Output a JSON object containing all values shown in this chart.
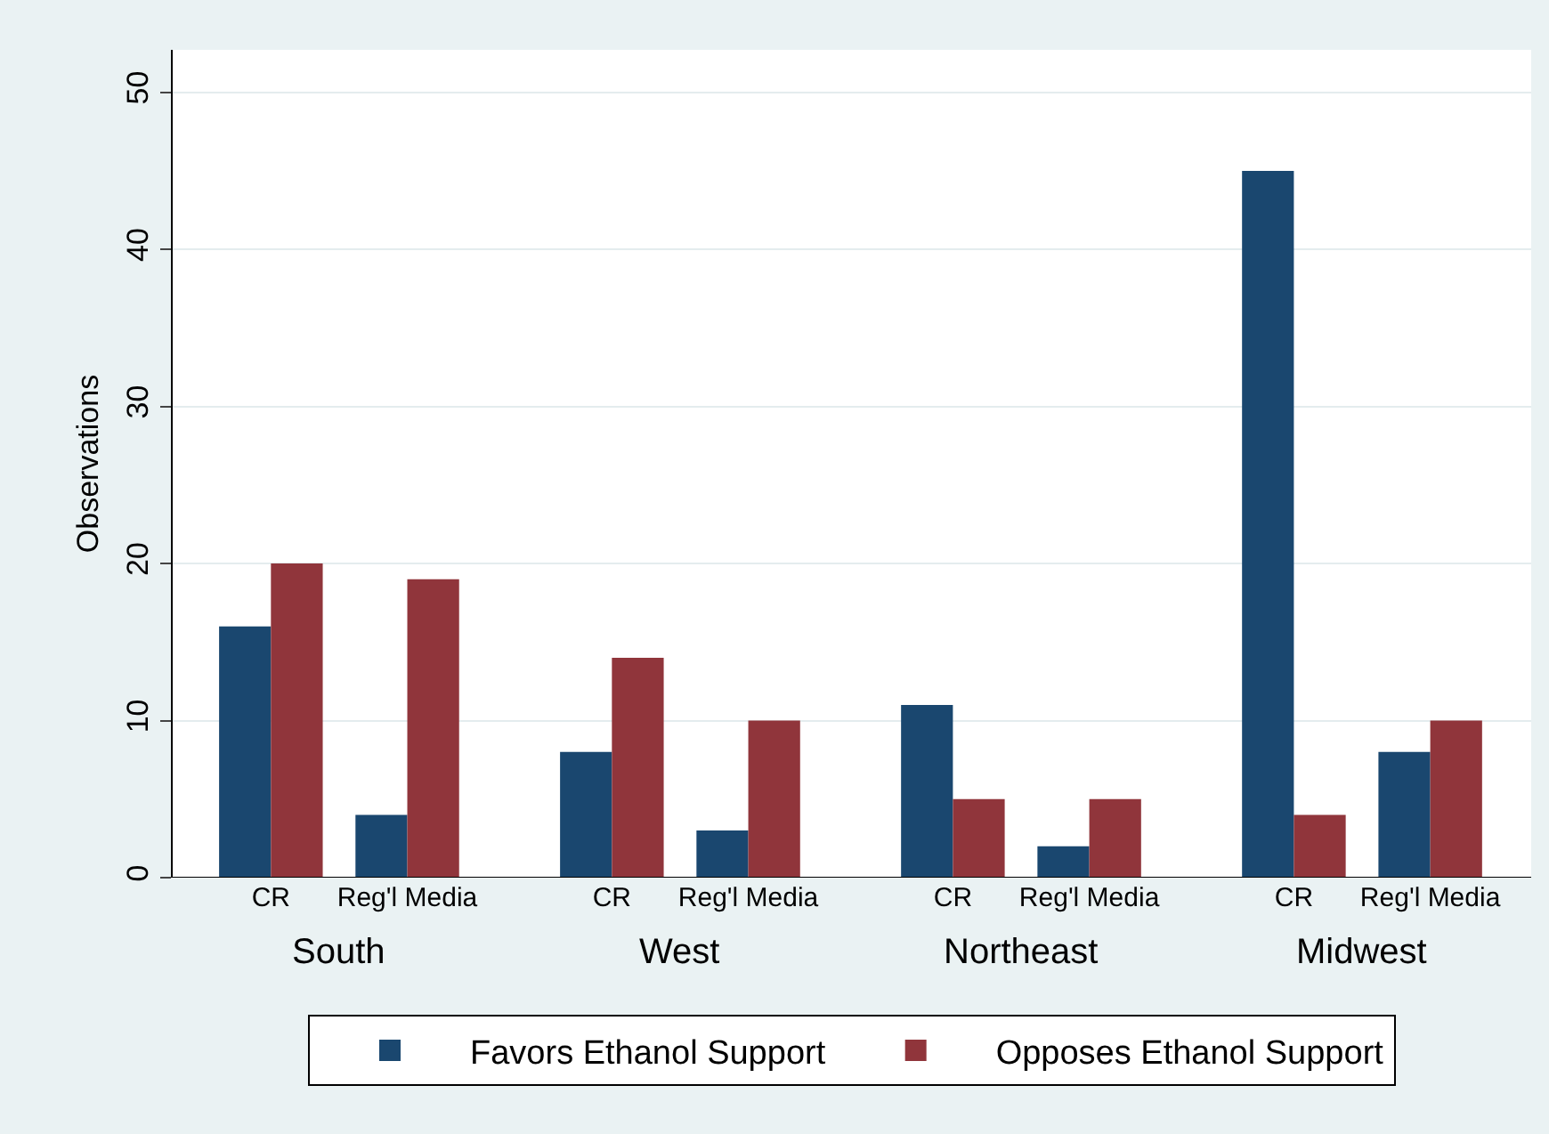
{
  "chart_data": {
    "type": "bar",
    "ylabel": "Observations",
    "categories": [
      "CR",
      "Reg'l Media",
      "CR",
      "Reg'l Media",
      "CR",
      "Reg'l Media",
      "CR",
      "Reg'l Media"
    ],
    "annotations": [
      "South",
      "West",
      "Northeast",
      "Midwest"
    ],
    "series": [
      {
        "name": "Favors Ethanol Support",
        "color": "#1a476f",
        "values": [
          16,
          4,
          8,
          3,
          11,
          2,
          45,
          8
        ]
      },
      {
        "name": "Opposes Ethanol Support",
        "color": "#90353b",
        "values": [
          20,
          19,
          14,
          10,
          5,
          5,
          4,
          10
        ]
      }
    ],
    "ylim": [
      0,
      52.7
    ],
    "yticks": [
      0,
      10,
      20,
      30,
      40,
      50
    ],
    "grid": "y",
    "legend": "bottom"
  }
}
